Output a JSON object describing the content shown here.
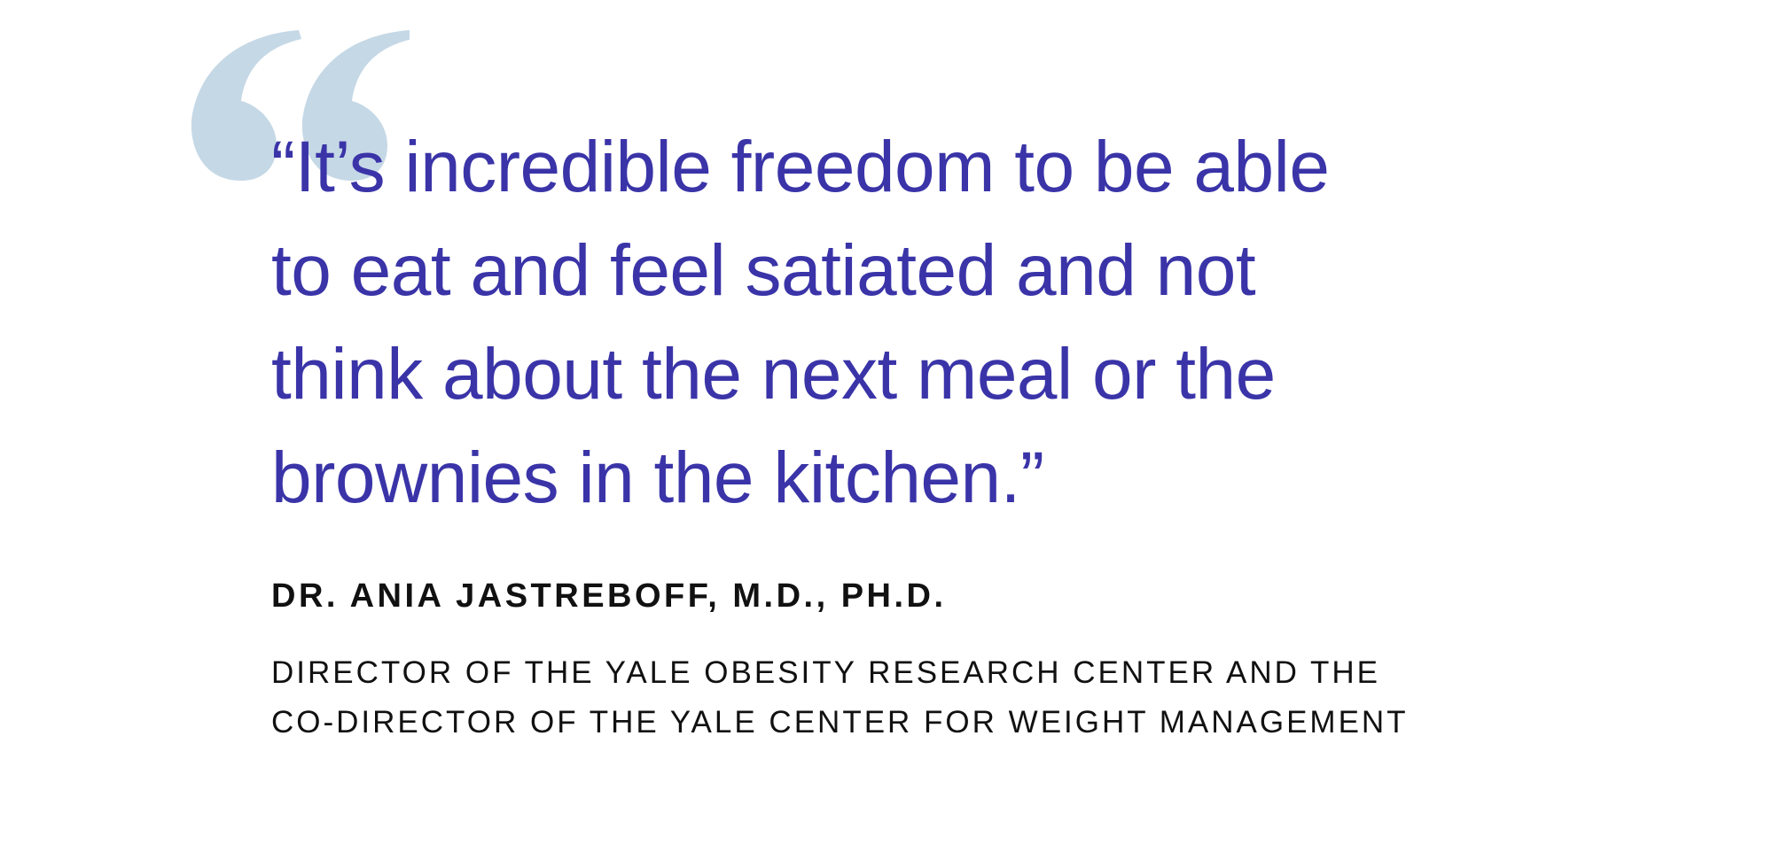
{
  "quote": {
    "lines": [
      "“It’s incredible freedom to be able",
      "to eat and feel satiated and not",
      "think about the next meal or the",
      "brownies in the kitchen.”"
    ]
  },
  "attribution": {
    "name": "DR. ANIA JASTREBOFF, M.D., PH.D.",
    "title_lines": [
      "DIRECTOR OF THE YALE OBESITY RESEARCH CENTER AND THE",
      "CO-DIRECTOR OF THE YALE CENTER FOR WEIGHT MANAGEMENT"
    ]
  }
}
